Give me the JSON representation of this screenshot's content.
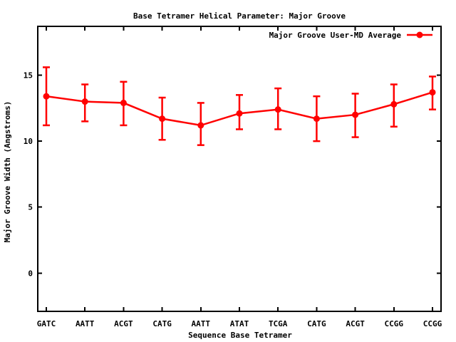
{
  "chart_data": {
    "type": "line",
    "title": "Base Tetramer Helical Parameter: Major Groove",
    "xlabel": "Sequence Base Tetramer",
    "ylabel": "Major Groove Width (Angstroms)",
    "categories": [
      "GATC",
      "AATT",
      "ACGT",
      "CATG",
      "AATT",
      "ATAT",
      "TCGA",
      "CATG",
      "ACGT",
      "CCGG",
      "CCGG"
    ],
    "series": [
      {
        "name": "Major Groove User-MD Average",
        "color": "#ff0000",
        "marker": "filled-circle",
        "values": [
          13.4,
          13.0,
          12.9,
          11.7,
          11.2,
          12.1,
          12.4,
          11.7,
          12.0,
          12.8,
          13.7
        ],
        "err_high": [
          15.6,
          14.3,
          14.5,
          13.3,
          12.9,
          13.5,
          14.0,
          13.4,
          13.6,
          14.3,
          14.9
        ],
        "err_low": [
          11.2,
          11.5,
          11.2,
          10.1,
          9.7,
          10.9,
          10.9,
          10.0,
          10.3,
          11.1,
          12.4
        ]
      }
    ],
    "yticks": [
      0,
      5,
      10,
      15
    ],
    "ylim": [
      -2.9,
      18.7
    ],
    "grid": false,
    "error_bars": true,
    "legend_position": "top-right-inside",
    "axis_color": "#000000",
    "background": "#ffffff"
  }
}
